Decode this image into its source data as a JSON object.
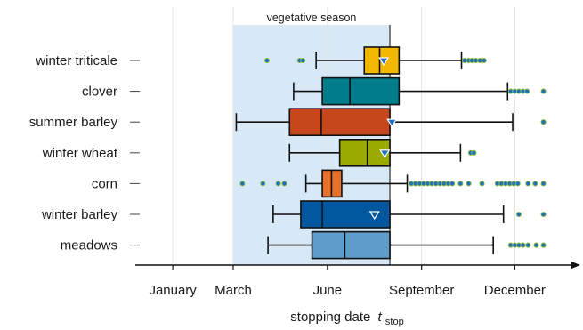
{
  "chart_data": {
    "type": "boxplot",
    "orientation": "horizontal",
    "xlabel": "stopping date",
    "xlabel_symbol": "t",
    "xlabel_subscript": "stop",
    "x_unit": "day of year",
    "xlim": [
      -70,
      397
    ],
    "x_ticks": [
      {
        "label": "January",
        "value": 0
      },
      {
        "label": "March",
        "value": 59
      },
      {
        "label": "June",
        "value": 151
      },
      {
        "label": "September",
        "value": 243
      },
      {
        "label": "December",
        "value": 334
      }
    ],
    "shaded_region": {
      "label": "vegetative season",
      "start": 59,
      "end": 212
    },
    "categories": [
      "winter triticale",
      "clover",
      "summer barley",
      "winter wheat",
      "corn",
      "winter barley",
      "meadows"
    ],
    "series": [
      {
        "category": "winter triticale",
        "color": "#f5b800",
        "whisker_low": 140,
        "q1": 187,
        "median": 202,
        "q3": 221,
        "whisker_high": 282,
        "mean": 206,
        "outliers": [
          92,
          124,
          127,
          285,
          289,
          292,
          296,
          300,
          304
        ]
      },
      {
        "category": "clover",
        "color": "#007c8a",
        "whisker_low": 118,
        "q1": 146,
        "median": 173,
        "q3": 221,
        "whisker_high": 327,
        "mean": null,
        "outliers": [
          330,
          334,
          338,
          342,
          346,
          362
        ]
      },
      {
        "category": "summer barley",
        "color": "#c8461c",
        "whisker_low": 62,
        "q1": 114,
        "median": 145,
        "q3": 212,
        "whisker_high": 332,
        "mean": 214,
        "outliers": [
          362
        ]
      },
      {
        "category": "winter wheat",
        "color": "#9aaa00",
        "whisker_low": 114,
        "q1": 163,
        "median": 190,
        "q3": 212,
        "whisker_high": 281,
        "mean": 207,
        "outliers": [
          291,
          294
        ]
      },
      {
        "category": "corn",
        "color": "#e8712a",
        "whisker_low": 130,
        "q1": 146,
        "median": 155,
        "q3": 165,
        "whisker_high": 229,
        "mean": null,
        "outliers": [
          68,
          88,
          103,
          109,
          233,
          237,
          241,
          245,
          249,
          253,
          257,
          261,
          265,
          269,
          273,
          281,
          289,
          302,
          317,
          321,
          325,
          329,
          333,
          337,
          347,
          354,
          362
        ]
      },
      {
        "category": "winter barley",
        "color": "#00579e",
        "whisker_low": 98,
        "q1": 125,
        "median": 146,
        "q3": 212,
        "whisker_high": 323,
        "mean": 197,
        "outliers": [
          338,
          362
        ]
      },
      {
        "category": "meadows",
        "color": "#5e9ccb",
        "whisker_low": 93,
        "q1": 136,
        "median": 168,
        "q3": 212,
        "whisker_high": 313,
        "mean": null,
        "outliers": [
          330,
          334,
          338,
          342,
          347,
          355,
          362
        ]
      }
    ],
    "outlier_color": "#1f6fbf",
    "grid": "vertical"
  }
}
